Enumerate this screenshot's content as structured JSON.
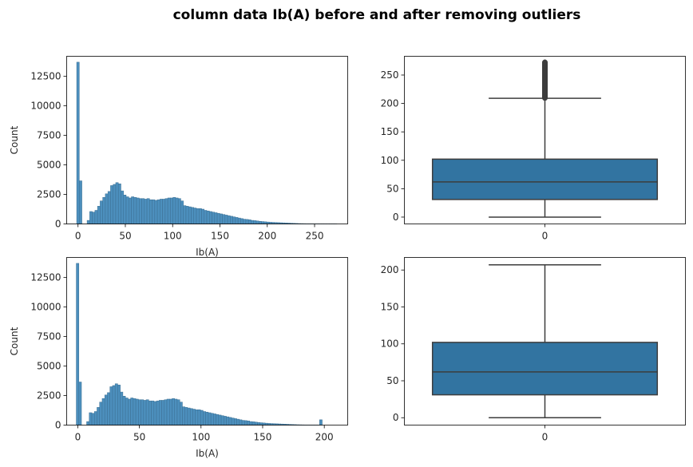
{
  "title": "column data Ib(A) before and after removing outliers",
  "colors": {
    "hist_fill": "#4c8fbd",
    "hist_edge": "#3b6f93",
    "box_fill": "#3274a1",
    "box_line": "#3d3d3d",
    "flier": "#3d3d3d"
  },
  "chart_data": [
    {
      "type": "bar",
      "panel": "top-left",
      "kind": "histogram",
      "xlabel": "Ib(A)",
      "ylabel": "Count",
      "xlim": [
        -12,
        285
      ],
      "ylim": [
        0,
        14200
      ],
      "xticks": [
        0,
        50,
        100,
        150,
        200,
        250
      ],
      "yticks": [
        0,
        2500,
        5000,
        7500,
        10000,
        12500
      ],
      "bin_start": -1.4,
      "bin_width": 2.75,
      "values": [
        13700,
        3650,
        0,
        0,
        300,
        1050,
        1000,
        1150,
        1500,
        1950,
        2250,
        2550,
        2750,
        3250,
        3350,
        3500,
        3400,
        2800,
        2450,
        2300,
        2200,
        2300,
        2250,
        2200,
        2150,
        2150,
        2100,
        2150,
        2050,
        2050,
        2000,
        2050,
        2100,
        2100,
        2150,
        2200,
        2200,
        2250,
        2200,
        2150,
        1950,
        1550,
        1500,
        1450,
        1400,
        1350,
        1300,
        1300,
        1250,
        1150,
        1100,
        1050,
        1000,
        950,
        900,
        850,
        800,
        750,
        700,
        650,
        600,
        550,
        500,
        450,
        400,
        380,
        350,
        300,
        280,
        250,
        220,
        200,
        180,
        160,
        140,
        130,
        120,
        110,
        100,
        90,
        80,
        70,
        60,
        50,
        40,
        30,
        25,
        20,
        15,
        12,
        10,
        8,
        6,
        5,
        4,
        3,
        2,
        2,
        1,
        1
      ]
    },
    {
      "type": "box",
      "panel": "top-right",
      "xticks": [
        "0"
      ],
      "yticks": [
        0,
        50,
        100,
        150,
        200,
        250
      ],
      "ylim": [
        -12,
        283
      ],
      "whisker_low": 0,
      "q1": 31,
      "median": 62,
      "q3": 102,
      "whisker_high": 209,
      "outlier_range": [
        209,
        273
      ]
    },
    {
      "type": "bar",
      "panel": "bottom-left",
      "kind": "histogram",
      "xlabel": "Ib(A)",
      "ylabel": "Count",
      "xlim": [
        -9,
        219
      ],
      "ylim": [
        0,
        14200
      ],
      "xticks": [
        0,
        50,
        100,
        150,
        200
      ],
      "yticks": [
        0,
        2500,
        5000,
        7500,
        10000,
        12500
      ],
      "bin_start": -1.2,
      "bin_width": 2.1,
      "values": [
        13700,
        3650,
        0,
        0,
        300,
        1050,
        1000,
        1150,
        1500,
        1950,
        2250,
        2550,
        2750,
        3250,
        3350,
        3500,
        3400,
        2800,
        2450,
        2300,
        2200,
        2300,
        2250,
        2200,
        2150,
        2150,
        2100,
        2150,
        2050,
        2050,
        2000,
        2050,
        2100,
        2100,
        2150,
        2200,
        2200,
        2250,
        2200,
        2150,
        1950,
        1550,
        1500,
        1450,
        1400,
        1350,
        1300,
        1300,
        1250,
        1150,
        1100,
        1050,
        1000,
        950,
        900,
        850,
        800,
        750,
        700,
        650,
        600,
        550,
        500,
        450,
        400,
        380,
        350,
        300,
        280,
        250,
        220,
        200,
        180,
        160,
        140,
        130,
        120,
        110,
        100,
        90,
        80,
        70,
        60,
        50,
        40,
        30,
        25,
        20,
        15,
        12,
        10,
        8,
        6,
        5,
        450
      ]
    },
    {
      "type": "box",
      "panel": "bottom-right",
      "xticks": [
        "0"
      ],
      "yticks": [
        0,
        50,
        100,
        150,
        200
      ],
      "ylim": [
        -10,
        217
      ],
      "whisker_low": 0,
      "q1": 31,
      "median": 62,
      "q3": 102,
      "whisker_high": 207
    }
  ]
}
